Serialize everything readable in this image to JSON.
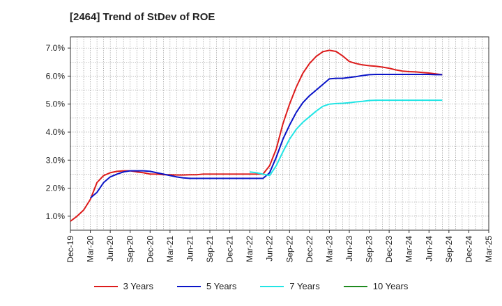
{
  "title": "[2464]  Trend of StDev of ROE",
  "chart_data": {
    "type": "line",
    "title": "[2464]  Trend of StDev of ROE",
    "x_ticks": [
      "Dec-19",
      "Mar-20",
      "Jun-20",
      "Sep-20",
      "Dec-20",
      "Mar-21",
      "Jun-21",
      "Sep-21",
      "Dec-21",
      "Mar-22",
      "Jun-22",
      "Sep-22",
      "Dec-22",
      "Mar-23",
      "Jun-23",
      "Sep-23",
      "Dec-23",
      "Mar-24",
      "Jun-24",
      "Sep-24",
      "Dec-24",
      "Mar-25"
    ],
    "y_ticks": [
      "1.0%",
      "2.0%",
      "3.0%",
      "4.0%",
      "5.0%",
      "6.0%",
      "7.0%"
    ],
    "ylim": [
      0.5,
      7.4
    ],
    "grid": true,
    "legend_position": "bottom",
    "series": [
      {
        "name": "3 Years",
        "color": "#dd1c1c",
        "points": [
          [
            0,
            0.82
          ],
          [
            1,
            1.0
          ],
          [
            2,
            1.22
          ],
          [
            3,
            1.6
          ],
          [
            4,
            2.2
          ],
          [
            5,
            2.45
          ],
          [
            6,
            2.55
          ],
          [
            7,
            2.6
          ],
          [
            8,
            2.62
          ],
          [
            9,
            2.62
          ],
          [
            10,
            2.58
          ],
          [
            11,
            2.55
          ],
          [
            12,
            2.5
          ],
          [
            13,
            2.5
          ],
          [
            14,
            2.48
          ],
          [
            15,
            2.48
          ],
          [
            16,
            2.47
          ],
          [
            17,
            2.47
          ],
          [
            18,
            2.48
          ],
          [
            19,
            2.48
          ],
          [
            20,
            2.5
          ],
          [
            21,
            2.5
          ],
          [
            22,
            2.5
          ],
          [
            23,
            2.5
          ],
          [
            24,
            2.5
          ],
          [
            25,
            2.5
          ],
          [
            26,
            2.5
          ],
          [
            27,
            2.5
          ],
          [
            29,
            2.5
          ],
          [
            30,
            2.8
          ],
          [
            31,
            3.4
          ],
          [
            32,
            4.3
          ],
          [
            33,
            5.0
          ],
          [
            34,
            5.6
          ],
          [
            35,
            6.1
          ],
          [
            36,
            6.45
          ],
          [
            37,
            6.7
          ],
          [
            38,
            6.87
          ],
          [
            39,
            6.92
          ],
          [
            40,
            6.88
          ],
          [
            41,
            6.72
          ],
          [
            42,
            6.52
          ],
          [
            43,
            6.45
          ],
          [
            44,
            6.4
          ],
          [
            45,
            6.37
          ],
          [
            46,
            6.35
          ],
          [
            47,
            6.32
          ],
          [
            48,
            6.28
          ],
          [
            49,
            6.22
          ],
          [
            50,
            6.18
          ],
          [
            51,
            6.16
          ],
          [
            52,
            6.15
          ],
          [
            53,
            6.13
          ],
          [
            54,
            6.11
          ],
          [
            55,
            6.08
          ],
          [
            56,
            6.05
          ]
        ]
      },
      {
        "name": "5 Years",
        "color": "#0a14c8",
        "points": [
          [
            3,
            1.65
          ],
          [
            4,
            1.85
          ],
          [
            5,
            2.2
          ],
          [
            6,
            2.4
          ],
          [
            7,
            2.5
          ],
          [
            8,
            2.58
          ],
          [
            9,
            2.62
          ],
          [
            10,
            2.62
          ],
          [
            11,
            2.62
          ],
          [
            12,
            2.6
          ],
          [
            13,
            2.55
          ],
          [
            14,
            2.5
          ],
          [
            15,
            2.45
          ],
          [
            16,
            2.4
          ],
          [
            17,
            2.37
          ],
          [
            18,
            2.35
          ],
          [
            19,
            2.35
          ],
          [
            20,
            2.35
          ],
          [
            21,
            2.35
          ],
          [
            22,
            2.35
          ],
          [
            23,
            2.35
          ],
          [
            24,
            2.35
          ],
          [
            25,
            2.35
          ],
          [
            26,
            2.35
          ],
          [
            27,
            2.35
          ],
          [
            29,
            2.35
          ],
          [
            30,
            2.55
          ],
          [
            31,
            3.1
          ],
          [
            32,
            3.75
          ],
          [
            33,
            4.25
          ],
          [
            34,
            4.7
          ],
          [
            35,
            5.05
          ],
          [
            36,
            5.3
          ],
          [
            37,
            5.5
          ],
          [
            38,
            5.7
          ],
          [
            39,
            5.9
          ],
          [
            40,
            5.92
          ],
          [
            41,
            5.92
          ],
          [
            42,
            5.95
          ],
          [
            43,
            5.98
          ],
          [
            44,
            6.02
          ],
          [
            45,
            6.05
          ],
          [
            46,
            6.06
          ],
          [
            47,
            6.06
          ],
          [
            48,
            6.06
          ],
          [
            49,
            6.06
          ],
          [
            50,
            6.06
          ],
          [
            51,
            6.06
          ],
          [
            52,
            6.06
          ],
          [
            53,
            6.06
          ],
          [
            54,
            6.06
          ],
          [
            55,
            6.05
          ],
          [
            56,
            6.05
          ]
        ]
      },
      {
        "name": "7 Years",
        "color": "#22e5e5",
        "points": [
          [
            27,
            2.58
          ],
          [
            28,
            2.55
          ],
          [
            29,
            2.5
          ],
          [
            30,
            2.45
          ],
          [
            31,
            2.8
          ],
          [
            32,
            3.3
          ],
          [
            33,
            3.75
          ],
          [
            34,
            4.1
          ],
          [
            35,
            4.35
          ],
          [
            36,
            4.55
          ],
          [
            37,
            4.75
          ],
          [
            38,
            4.92
          ],
          [
            39,
            5.0
          ],
          [
            40,
            5.02
          ],
          [
            41,
            5.03
          ],
          [
            42,
            5.05
          ],
          [
            43,
            5.08
          ],
          [
            44,
            5.1
          ],
          [
            45,
            5.13
          ],
          [
            46,
            5.14
          ],
          [
            47,
            5.14
          ],
          [
            48,
            5.14
          ],
          [
            49,
            5.14
          ],
          [
            50,
            5.14
          ],
          [
            51,
            5.14
          ],
          [
            52,
            5.14
          ],
          [
            53,
            5.14
          ],
          [
            54,
            5.14
          ],
          [
            55,
            5.14
          ],
          [
            56,
            5.14
          ]
        ]
      },
      {
        "name": "10 Years",
        "color": "#1f8a1f",
        "points": []
      }
    ]
  }
}
